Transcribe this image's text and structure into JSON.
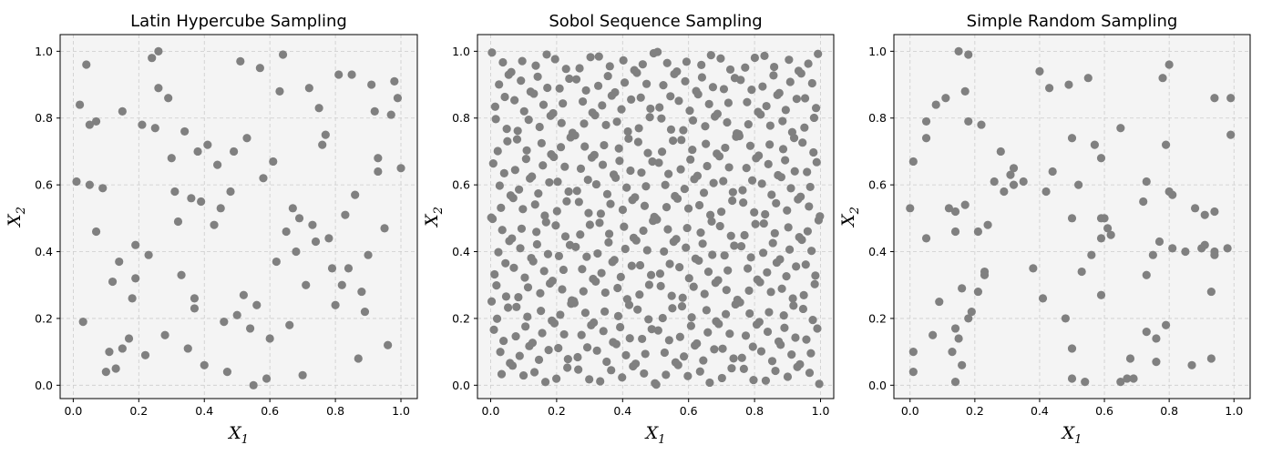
{
  "chart_data": [
    {
      "type": "scatter",
      "title": "Latin Hypercube Sampling",
      "xlabel": "X",
      "xlabel_sub": "1",
      "ylabel": "X",
      "ylabel_sub": "2",
      "xlim": [
        -0.04,
        1.05
      ],
      "ylim": [
        -0.04,
        1.05
      ],
      "xticks": [
        "0.0",
        "0.2",
        "0.4",
        "0.6",
        "0.8",
        "1.0"
      ],
      "yticks": [
        "0.0",
        "0.2",
        "0.4",
        "0.6",
        "0.8",
        "1.0"
      ],
      "grid": true,
      "color": "#808080",
      "points": [
        [
          0.01,
          0.61
        ],
        [
          0.02,
          0.84
        ],
        [
          0.03,
          0.19
        ],
        [
          0.04,
          0.96
        ],
        [
          0.05,
          0.78
        ],
        [
          0.05,
          0.6
        ],
        [
          0.07,
          0.79
        ],
        [
          0.07,
          0.46
        ],
        [
          0.09,
          0.59
        ],
        [
          0.1,
          0.04
        ],
        [
          0.11,
          0.1
        ],
        [
          0.12,
          0.31
        ],
        [
          0.13,
          0.05
        ],
        [
          0.14,
          0.37
        ],
        [
          0.15,
          0.82
        ],
        [
          0.15,
          0.11
        ],
        [
          0.17,
          0.14
        ],
        [
          0.18,
          0.26
        ],
        [
          0.19,
          0.42
        ],
        [
          0.19,
          0.32
        ],
        [
          0.21,
          0.78
        ],
        [
          0.22,
          0.09
        ],
        [
          0.23,
          0.39
        ],
        [
          0.24,
          0.98
        ],
        [
          0.25,
          0.77
        ],
        [
          0.26,
          1.0
        ],
        [
          0.26,
          0.89
        ],
        [
          0.28,
          0.15
        ],
        [
          0.29,
          0.86
        ],
        [
          0.3,
          0.68
        ],
        [
          0.31,
          0.58
        ],
        [
          0.32,
          0.49
        ],
        [
          0.33,
          0.33
        ],
        [
          0.34,
          0.76
        ],
        [
          0.35,
          0.11
        ],
        [
          0.36,
          0.56
        ],
        [
          0.37,
          0.26
        ],
        [
          0.37,
          0.23
        ],
        [
          0.38,
          0.7
        ],
        [
          0.39,
          0.55
        ],
        [
          0.4,
          0.06
        ],
        [
          0.41,
          0.72
        ],
        [
          0.43,
          0.48
        ],
        [
          0.44,
          0.66
        ],
        [
          0.45,
          0.53
        ],
        [
          0.46,
          0.19
        ],
        [
          0.47,
          0.04
        ],
        [
          0.48,
          0.58
        ],
        [
          0.49,
          0.7
        ],
        [
          0.5,
          0.21
        ],
        [
          0.51,
          0.97
        ],
        [
          0.52,
          0.27
        ],
        [
          0.53,
          0.74
        ],
        [
          0.54,
          0.17
        ],
        [
          0.55,
          0.0
        ],
        [
          0.56,
          0.24
        ],
        [
          0.57,
          0.95
        ],
        [
          0.58,
          0.62
        ],
        [
          0.59,
          0.02
        ],
        [
          0.6,
          0.14
        ],
        [
          0.61,
          0.67
        ],
        [
          0.62,
          0.37
        ],
        [
          0.63,
          0.88
        ],
        [
          0.64,
          0.99
        ],
        [
          0.65,
          0.46
        ],
        [
          0.66,
          0.18
        ],
        [
          0.67,
          0.53
        ],
        [
          0.68,
          0.4
        ],
        [
          0.69,
          0.5
        ],
        [
          0.7,
          0.03
        ],
        [
          0.71,
          0.3
        ],
        [
          0.72,
          0.89
        ],
        [
          0.73,
          0.48
        ],
        [
          0.74,
          0.43
        ],
        [
          0.75,
          0.83
        ],
        [
          0.76,
          0.72
        ],
        [
          0.77,
          0.75
        ],
        [
          0.78,
          0.44
        ],
        [
          0.79,
          0.35
        ],
        [
          0.8,
          0.24
        ],
        [
          0.81,
          0.93
        ],
        [
          0.82,
          0.3
        ],
        [
          0.83,
          0.51
        ],
        [
          0.84,
          0.35
        ],
        [
          0.85,
          0.93
        ],
        [
          0.86,
          0.57
        ],
        [
          0.87,
          0.08
        ],
        [
          0.88,
          0.28
        ],
        [
          0.89,
          0.22
        ],
        [
          0.9,
          0.39
        ],
        [
          0.91,
          0.9
        ],
        [
          0.92,
          0.82
        ],
        [
          0.93,
          0.68
        ],
        [
          0.93,
          0.64
        ],
        [
          0.95,
          0.47
        ],
        [
          0.96,
          0.12
        ],
        [
          0.97,
          0.81
        ],
        [
          0.98,
          0.91
        ],
        [
          0.99,
          0.86
        ],
        [
          1.0,
          0.65
        ]
      ]
    },
    {
      "type": "scatter",
      "title": "Sobol Sequence Sampling",
      "xlabel": "X",
      "xlabel_sub": "1",
      "ylabel": "X",
      "ylabel_sub": "2",
      "xlim": [
        -0.04,
        1.04
      ],
      "ylim": [
        -0.04,
        1.05
      ],
      "xticks": [
        "0.0",
        "0.2",
        "0.4",
        "0.6",
        "0.8",
        "1.0"
      ],
      "yticks": [
        "0.0",
        "0.2",
        "0.4",
        "0.6",
        "0.8",
        "1.0"
      ],
      "grid": true,
      "color": "#808080",
      "generator": "sobol",
      "count": 512
    },
    {
      "type": "scatter",
      "title": "Simple Random Sampling",
      "xlabel": "X",
      "xlabel_sub": "1",
      "ylabel": "X",
      "ylabel_sub": "2",
      "xlim": [
        -0.05,
        1.05
      ],
      "ylim": [
        -0.04,
        1.05
      ],
      "xticks": [
        "0.0",
        "0.2",
        "0.4",
        "0.6",
        "0.8",
        "1.0"
      ],
      "yticks": [
        "0.0",
        "0.2",
        "0.4",
        "0.6",
        "0.8",
        "1.0"
      ],
      "grid": true,
      "color": "#808080",
      "points": [
        [
          0.0,
          0.53
        ],
        [
          0.01,
          0.1
        ],
        [
          0.01,
          0.04
        ],
        [
          0.01,
          0.67
        ],
        [
          0.05,
          0.79
        ],
        [
          0.05,
          0.74
        ],
        [
          0.05,
          0.44
        ],
        [
          0.07,
          0.15
        ],
        [
          0.08,
          0.84
        ],
        [
          0.09,
          0.25
        ],
        [
          0.11,
          0.86
        ],
        [
          0.12,
          0.53
        ],
        [
          0.13,
          0.1
        ],
        [
          0.14,
          0.52
        ],
        [
          0.14,
          0.46
        ],
        [
          0.14,
          0.17
        ],
        [
          0.14,
          0.01
        ],
        [
          0.15,
          1.0
        ],
        [
          0.15,
          0.14
        ],
        [
          0.16,
          0.29
        ],
        [
          0.16,
          0.06
        ],
        [
          0.17,
          0.54
        ],
        [
          0.17,
          0.88
        ],
        [
          0.18,
          0.99
        ],
        [
          0.18,
          0.79
        ],
        [
          0.18,
          0.2
        ],
        [
          0.19,
          0.22
        ],
        [
          0.21,
          0.46
        ],
        [
          0.21,
          0.28
        ],
        [
          0.22,
          0.78
        ],
        [
          0.23,
          0.33
        ],
        [
          0.23,
          0.34
        ],
        [
          0.24,
          0.48
        ],
        [
          0.26,
          0.61
        ],
        [
          0.28,
          0.7
        ],
        [
          0.29,
          0.58
        ],
        [
          0.31,
          0.63
        ],
        [
          0.32,
          0.65
        ],
        [
          0.32,
          0.6
        ],
        [
          0.35,
          0.61
        ],
        [
          0.38,
          0.35
        ],
        [
          0.4,
          0.94
        ],
        [
          0.41,
          0.26
        ],
        [
          0.42,
          0.58
        ],
        [
          0.43,
          0.89
        ],
        [
          0.44,
          0.64
        ],
        [
          0.48,
          0.2
        ],
        [
          0.49,
          0.9
        ],
        [
          0.5,
          0.74
        ],
        [
          0.5,
          0.5
        ],
        [
          0.5,
          0.11
        ],
        [
          0.5,
          0.02
        ],
        [
          0.52,
          0.6
        ],
        [
          0.53,
          0.34
        ],
        [
          0.54,
          0.01
        ],
        [
          0.55,
          0.92
        ],
        [
          0.56,
          0.39
        ],
        [
          0.57,
          0.72
        ],
        [
          0.59,
          0.68
        ],
        [
          0.59,
          0.5
        ],
        [
          0.59,
          0.44
        ],
        [
          0.59,
          0.27
        ],
        [
          0.6,
          0.5
        ],
        [
          0.61,
          0.47
        ],
        [
          0.62,
          0.45
        ],
        [
          0.65,
          0.77
        ],
        [
          0.65,
          0.01
        ],
        [
          0.67,
          0.02
        ],
        [
          0.68,
          0.08
        ],
        [
          0.69,
          0.02
        ],
        [
          0.72,
          0.55
        ],
        [
          0.73,
          0.61
        ],
        [
          0.73,
          0.33
        ],
        [
          0.73,
          0.16
        ],
        [
          0.75,
          0.39
        ],
        [
          0.76,
          0.14
        ],
        [
          0.76,
          0.07
        ],
        [
          0.77,
          0.43
        ],
        [
          0.78,
          0.92
        ],
        [
          0.79,
          0.72
        ],
        [
          0.79,
          0.18
        ],
        [
          0.8,
          0.96
        ],
        [
          0.8,
          0.58
        ],
        [
          0.81,
          0.57
        ],
        [
          0.81,
          0.41
        ],
        [
          0.85,
          0.4
        ],
        [
          0.87,
          0.06
        ],
        [
          0.88,
          0.53
        ],
        [
          0.9,
          0.41
        ],
        [
          0.91,
          0.51
        ],
        [
          0.91,
          0.42
        ],
        [
          0.93,
          0.28
        ],
        [
          0.93,
          0.08
        ],
        [
          0.94,
          0.52
        ],
        [
          0.94,
          0.86
        ],
        [
          0.94,
          0.4
        ],
        [
          0.98,
          0.41
        ],
        [
          0.99,
          0.86
        ],
        [
          0.99,
          0.75
        ],
        [
          0.94,
          0.39
        ]
      ]
    }
  ]
}
